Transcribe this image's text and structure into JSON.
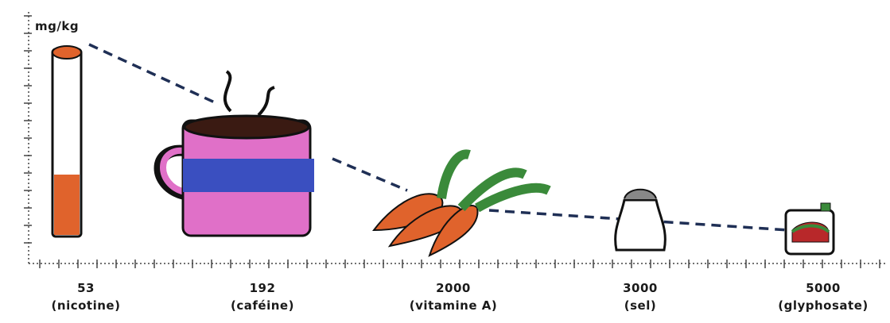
{
  "unit": "mg/kg",
  "items": [
    {
      "value": 53,
      "label": "(nicotine)"
    },
    {
      "value": 192,
      "label": "(caféine)"
    },
    {
      "value": 2000,
      "label": "(vitamine A)"
    },
    {
      "value": 3000,
      "label": "(sel)"
    },
    {
      "value": 5000,
      "label": "(glyphosate)"
    }
  ]
}
